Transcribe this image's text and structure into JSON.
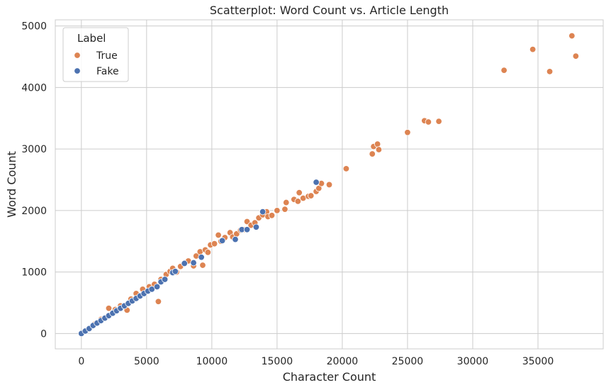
{
  "chart_data": {
    "type": "scatter",
    "title": "Scatterplot: Word Count vs. Article Length",
    "xlabel": "Character Count",
    "ylabel": "Word Count",
    "xlim": [
      -2000,
      40000
    ],
    "ylim": [
      -250,
      5100
    ],
    "x_ticks": [
      0,
      5000,
      10000,
      15000,
      20000,
      25000,
      30000,
      35000
    ],
    "y_ticks": [
      0,
      1000,
      2000,
      3000,
      4000,
      5000
    ],
    "grid": true,
    "legend": {
      "title": "Label",
      "placement": "top-left"
    },
    "series": [
      {
        "name": "True",
        "color": "#dd8452",
        "points": [
          [
            1000,
            150
          ],
          [
            1500,
            230
          ],
          [
            2100,
            410
          ],
          [
            2600,
            390
          ],
          [
            3000,
            450
          ],
          [
            3500,
            380
          ],
          [
            3800,
            560
          ],
          [
            4200,
            650
          ],
          [
            4700,
            720
          ],
          [
            5200,
            760
          ],
          [
            5600,
            800
          ],
          [
            5900,
            520
          ],
          [
            6100,
            880
          ],
          [
            6500,
            960
          ],
          [
            6800,
            1010
          ],
          [
            7000,
            1060
          ],
          [
            7300,
            1000
          ],
          [
            7600,
            1090
          ],
          [
            7900,
            1140
          ],
          [
            8200,
            1180
          ],
          [
            8600,
            1100
          ],
          [
            8800,
            1260
          ],
          [
            9100,
            1330
          ],
          [
            9300,
            1110
          ],
          [
            9500,
            1360
          ],
          [
            9700,
            1320
          ],
          [
            9900,
            1440
          ],
          [
            10200,
            1460
          ],
          [
            10500,
            1600
          ],
          [
            10700,
            1500
          ],
          [
            11000,
            1560
          ],
          [
            11400,
            1640
          ],
          [
            11600,
            1570
          ],
          [
            11900,
            1620
          ],
          [
            12200,
            1680
          ],
          [
            12500,
            1690
          ],
          [
            12700,
            1820
          ],
          [
            13000,
            1760
          ],
          [
            13300,
            1800
          ],
          [
            13600,
            1880
          ],
          [
            13900,
            1930
          ],
          [
            14200,
            1980
          ],
          [
            14300,
            1900
          ],
          [
            14600,
            1920
          ],
          [
            15000,
            2000
          ],
          [
            15600,
            2020
          ],
          [
            15700,
            2130
          ],
          [
            16300,
            2180
          ],
          [
            16600,
            2150
          ],
          [
            16700,
            2290
          ],
          [
            17000,
            2200
          ],
          [
            17400,
            2230
          ],
          [
            17600,
            2240
          ],
          [
            18000,
            2310
          ],
          [
            18200,
            2360
          ],
          [
            18400,
            2440
          ],
          [
            19000,
            2420
          ],
          [
            20300,
            2680
          ],
          [
            22300,
            2920
          ],
          [
            22400,
            3040
          ],
          [
            22700,
            3080
          ],
          [
            22800,
            2990
          ],
          [
            25000,
            3270
          ],
          [
            26300,
            3460
          ],
          [
            26600,
            3440
          ],
          [
            27400,
            3450
          ],
          [
            32400,
            4280
          ],
          [
            34600,
            4620
          ],
          [
            35900,
            4260
          ],
          [
            37600,
            4840
          ],
          [
            37900,
            4510
          ]
        ]
      },
      {
        "name": "Fake",
        "color": "#4c72b0",
        "points": [
          [
            0,
            0
          ],
          [
            300,
            40
          ],
          [
            600,
            80
          ],
          [
            900,
            130
          ],
          [
            1200,
            170
          ],
          [
            1500,
            210
          ],
          [
            1800,
            250
          ],
          [
            2100,
            290
          ],
          [
            2400,
            330
          ],
          [
            2700,
            370
          ],
          [
            3000,
            410
          ],
          [
            3300,
            450
          ],
          [
            3600,
            490
          ],
          [
            3900,
            530
          ],
          [
            4200,
            570
          ],
          [
            4500,
            610
          ],
          [
            4800,
            650
          ],
          [
            5100,
            690
          ],
          [
            5400,
            720
          ],
          [
            5800,
            760
          ],
          [
            6100,
            840
          ],
          [
            6400,
            880
          ],
          [
            7000,
            990
          ],
          [
            7200,
            1010
          ],
          [
            7900,
            1140
          ],
          [
            8600,
            1150
          ],
          [
            9200,
            1240
          ],
          [
            10800,
            1510
          ],
          [
            11800,
            1530
          ],
          [
            12300,
            1690
          ],
          [
            12700,
            1690
          ],
          [
            13400,
            1730
          ],
          [
            13900,
            1980
          ],
          [
            18000,
            2460
          ]
        ]
      }
    ]
  }
}
